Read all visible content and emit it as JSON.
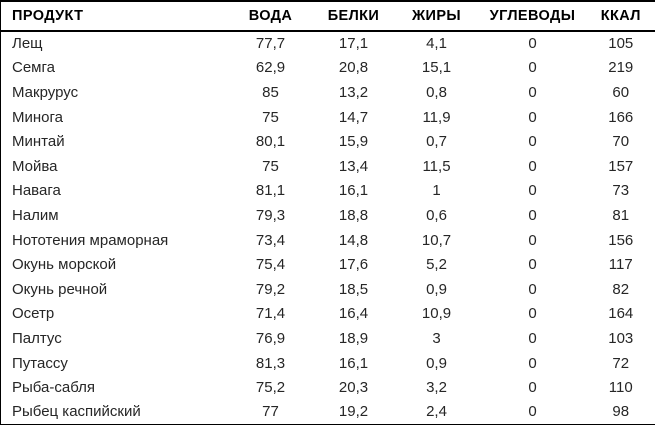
{
  "colors": {
    "border": "#000000",
    "header_text": "#000000",
    "body_text": "#262626",
    "background": "#ffffff"
  },
  "table": {
    "columns": [
      {
        "key": "product",
        "label": "ПРОДУКТ"
      },
      {
        "key": "water",
        "label": "ВОДА"
      },
      {
        "key": "protein",
        "label": "БЕЛКИ"
      },
      {
        "key": "fat",
        "label": "ЖИРЫ"
      },
      {
        "key": "carbs",
        "label": "УГЛЕВОДЫ"
      },
      {
        "key": "kcal",
        "label": "ККАЛ"
      }
    ],
    "rows": [
      [
        "Лещ",
        "77,7",
        "17,1",
        "4,1",
        "0",
        "105"
      ],
      [
        "Семга",
        "62,9",
        "20,8",
        "15,1",
        "0",
        "219"
      ],
      [
        "Макрурус",
        "85",
        "13,2",
        "0,8",
        "0",
        "60"
      ],
      [
        "Минога",
        "75",
        "14,7",
        "11,9",
        "0",
        "166"
      ],
      [
        "Минтай",
        "80,1",
        "15,9",
        "0,7",
        "0",
        "70"
      ],
      [
        "Мойва",
        "75",
        "13,4",
        "11,5",
        "0",
        "157"
      ],
      [
        "Навага",
        "81,1",
        "16,1",
        "1",
        "0",
        "73"
      ],
      [
        "Налим",
        "79,3",
        "18,8",
        "0,6",
        "0",
        "81"
      ],
      [
        "Нототения мраморная",
        "73,4",
        "14,8",
        "10,7",
        "0",
        "156"
      ],
      [
        "Окунь морской",
        "75,4",
        "17,6",
        "5,2",
        "0",
        "117"
      ],
      [
        "Окунь речной",
        "79,2",
        "18,5",
        "0,9",
        "0",
        "82"
      ],
      [
        "Осетр",
        "71,4",
        "16,4",
        "10,9",
        "0",
        "164"
      ],
      [
        "Палтус",
        "76,9",
        "18,9",
        "3",
        "0",
        "103"
      ],
      [
        "Путассу",
        "81,3",
        "16,1",
        "0,9",
        "0",
        "72"
      ],
      [
        "Рыба-сабля",
        "75,2",
        "20,3",
        "3,2",
        "0",
        "110"
      ],
      [
        "Рыбец каспийский",
        "77",
        "19,2",
        "2,4",
        "0",
        "98"
      ]
    ]
  }
}
